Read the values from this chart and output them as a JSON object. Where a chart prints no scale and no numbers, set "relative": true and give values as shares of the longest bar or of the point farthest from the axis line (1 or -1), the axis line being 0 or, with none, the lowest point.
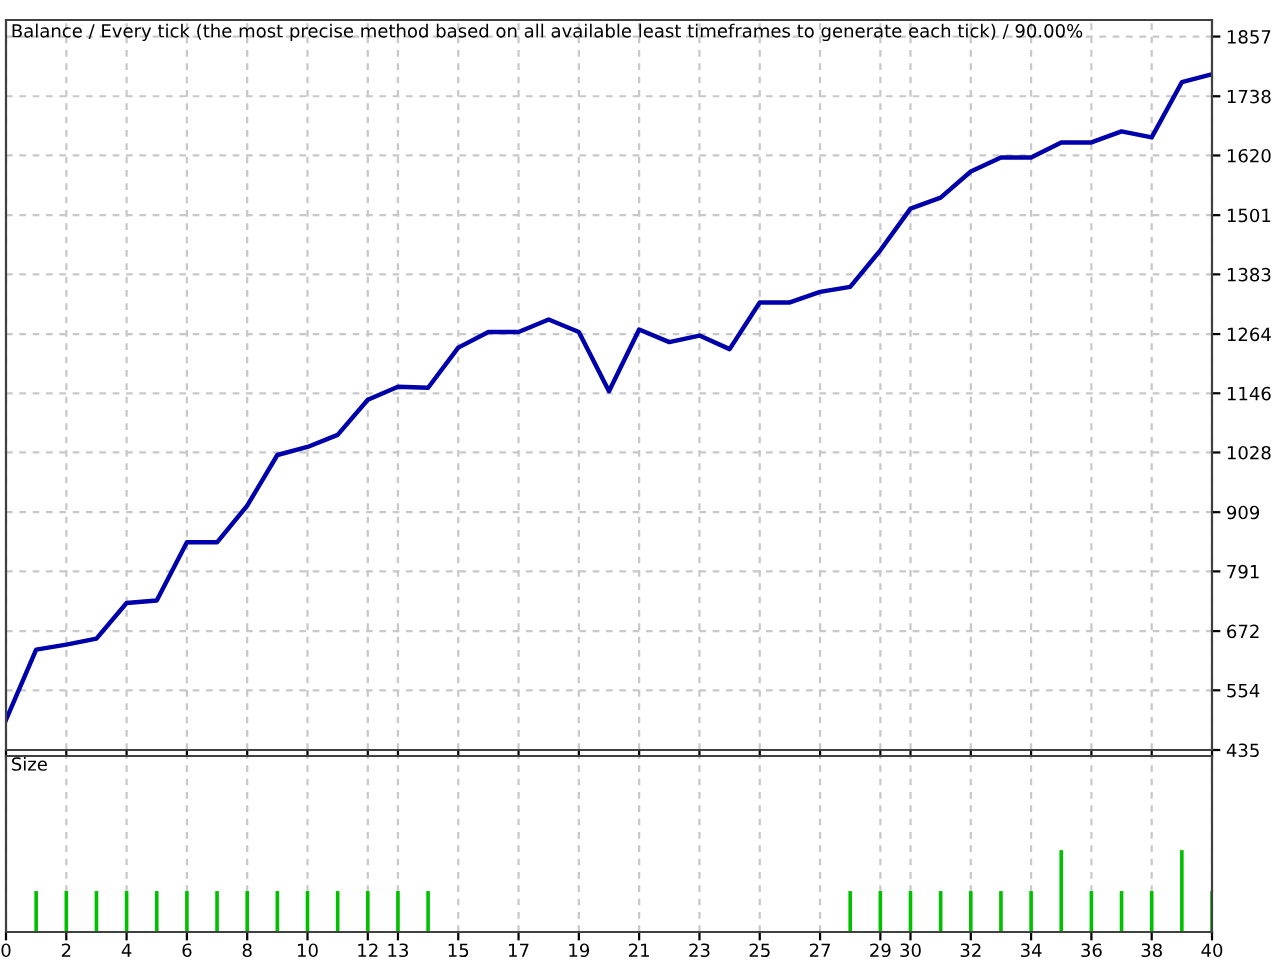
{
  "chart_data": [
    {
      "type": "line",
      "title": "Balance / Every tick (the most precise method based on all available least timeframes to generate each tick) / 90.00%",
      "x": [
        0,
        1,
        2,
        3,
        4,
        5,
        6,
        7,
        8,
        9,
        10,
        11,
        12,
        13,
        14,
        15,
        16,
        17,
        18,
        19,
        20,
        21,
        22,
        23,
        24,
        25,
        26,
        27,
        28,
        29,
        30,
        31,
        32,
        33,
        34,
        35,
        36,
        37,
        38,
        39,
        40
      ],
      "series": [
        {
          "color": "#0000aa",
          "values": [
            495,
            635,
            645,
            657,
            728,
            733,
            849,
            849,
            922,
            1023,
            1039,
            1063,
            1133,
            1159,
            1157,
            1237,
            1268,
            1268,
            1293,
            1268,
            1150,
            1273,
            1248,
            1261,
            1234,
            1327,
            1327,
            1348,
            1358,
            1431,
            1514,
            1536,
            1588,
            1616,
            1616,
            1646,
            1646,
            1668,
            1656,
            1766,
            1782
          ]
        }
      ],
      "xlim": [
        0,
        40
      ],
      "ylim": [
        435,
        1890
      ],
      "xticks": [
        0,
        2,
        4,
        6,
        8,
        10,
        12,
        13,
        15,
        17,
        19,
        21,
        23,
        25,
        27,
        29,
        30,
        32,
        34,
        36,
        38,
        40
      ],
      "yticks": [
        435,
        554,
        672,
        791,
        909,
        1028,
        1146,
        1264,
        1383,
        1501,
        1620,
        1738,
        1857
      ],
      "tick_labels": "y",
      "grid": true,
      "line_style": "solid",
      "marker": "none"
    },
    {
      "type": "bar",
      "title": "Size",
      "relative": true,
      "x": [
        1,
        2,
        3,
        4,
        5,
        6,
        7,
        8,
        9,
        10,
        11,
        12,
        13,
        14,
        15,
        16,
        17,
        18,
        19,
        20,
        21,
        22,
        23,
        24,
        25,
        26,
        27,
        28,
        29,
        30,
        31,
        32,
        33,
        34,
        35,
        36,
        37,
        38,
        39,
        40
      ],
      "series": [
        {
          "color": "#00c000",
          "values": [
            0.5,
            0.5,
            0.5,
            0.5,
            0.5,
            0.5,
            0.5,
            0.5,
            0.5,
            0.5,
            0.5,
            0.5,
            0.5,
            0.5,
            null,
            null,
            null,
            null,
            null,
            null,
            null,
            null,
            null,
            null,
            null,
            null,
            null,
            0.5,
            0.5,
            0.5,
            0.5,
            0.5,
            0.5,
            0.5,
            1,
            0.5,
            0.5,
            0.5,
            1,
            0.5
          ]
        }
      ],
      "xlim": [
        0,
        40
      ],
      "xticks": [
        0,
        2,
        4,
        6,
        8,
        10,
        12,
        13,
        15,
        17,
        19,
        21,
        23,
        25,
        27,
        29,
        30,
        32,
        34,
        36,
        38,
        40
      ],
      "tick_labels": "x",
      "grid": "x"
    }
  ]
}
